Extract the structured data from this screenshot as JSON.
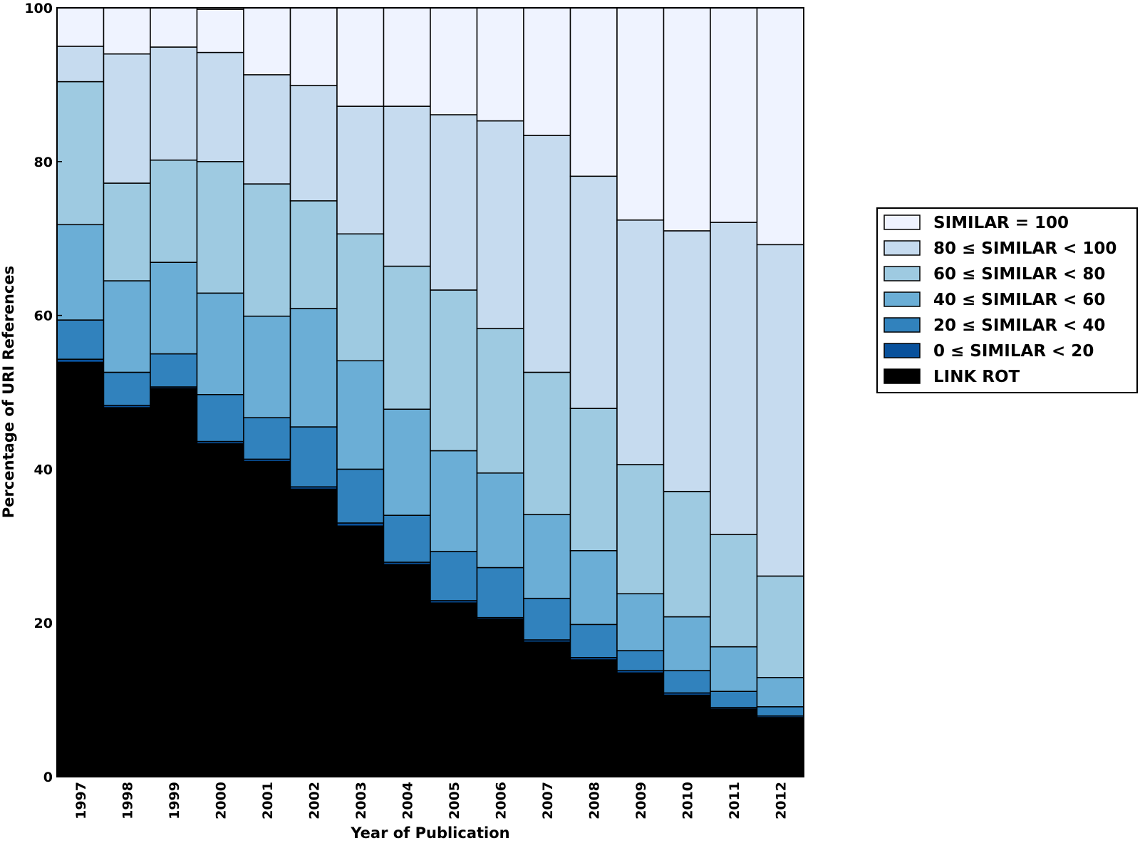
{
  "chart_data": {
    "type": "bar",
    "stacked": true,
    "xlabel": "Year of Publication",
    "ylabel": "Percentage of URI References",
    "ylim": [
      0,
      100
    ],
    "yticks": [
      0,
      20,
      40,
      60,
      80,
      100
    ],
    "grid": false,
    "legend_position": "right",
    "categories": [
      "1997",
      "1998",
      "1999",
      "2000",
      "2001",
      "2002",
      "2003",
      "2004",
      "2005",
      "2006",
      "2007",
      "2008",
      "2009",
      "2010",
      "2011",
      "2012"
    ],
    "series": [
      {
        "name": "LINK ROT",
        "color": "#000000",
        "values": [
          53.9,
          48.0,
          50.5,
          43.3,
          41.0,
          37.4,
          32.6,
          27.6,
          22.6,
          20.5,
          17.5,
          15.2,
          13.5,
          10.6,
          8.8,
          7.7
        ]
      },
      {
        "name": "0 ≤ SIMILAR < 20",
        "color": "#08519c",
        "values": [
          0.4,
          0.3,
          0.2,
          0.3,
          0.3,
          0.3,
          0.4,
          0.3,
          0.3,
          0.2,
          0.3,
          0.3,
          0.3,
          0.3,
          0.2,
          0.2
        ]
      },
      {
        "name": "20 ≤ SIMILAR < 40",
        "color": "#3182bd",
        "values": [
          5.1,
          4.3,
          4.3,
          6.1,
          5.4,
          7.8,
          7.0,
          6.1,
          6.4,
          6.5,
          5.4,
          4.3,
          2.6,
          2.9,
          2.1,
          1.2
        ]
      },
      {
        "name": "40 ≤ SIMILAR < 60",
        "color": "#6baed6",
        "values": [
          12.4,
          11.9,
          11.9,
          13.2,
          13.2,
          15.4,
          14.1,
          13.8,
          13.1,
          12.3,
          10.9,
          9.6,
          7.4,
          7.0,
          5.8,
          3.8
        ]
      },
      {
        "name": "60 ≤ SIMILAR < 80",
        "color": "#9ecae1",
        "values": [
          18.6,
          12.7,
          13.3,
          17.1,
          17.2,
          14.0,
          16.5,
          18.6,
          20.9,
          18.8,
          18.5,
          18.5,
          16.8,
          16.3,
          14.6,
          13.2
        ]
      },
      {
        "name": "80 ≤ SIMILAR < 100",
        "color": "#c6dbef",
        "values": [
          4.6,
          16.8,
          14.7,
          14.2,
          14.2,
          15.0,
          16.6,
          20.8,
          22.8,
          27.0,
          30.8,
          30.2,
          31.8,
          33.9,
          40.6,
          43.1
        ]
      },
      {
        "name": "SIMILAR = 100",
        "color": "#eff3ff",
        "values": [
          5.0,
          6.0,
          5.1,
          5.6,
          8.7,
          10.1,
          12.8,
          12.8,
          13.9,
          14.7,
          16.6,
          21.9,
          27.6,
          29.0,
          27.9,
          30.8
        ]
      }
    ]
  }
}
